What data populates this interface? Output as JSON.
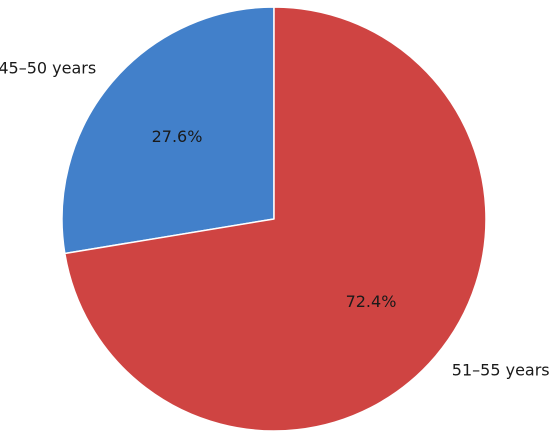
{
  "chart_data": {
    "type": "pie",
    "title": "",
    "slices": [
      {
        "label": "45–50 years",
        "value": 27.6,
        "display": "27.6%",
        "color": "#4280ca"
      },
      {
        "label": "51–55 years",
        "value": 72.4,
        "display": "72.4%",
        "color": "#cf4442"
      }
    ],
    "start_angle_deg": 90,
    "direction": "counterclockwise",
    "edge_color": "#ffffff"
  }
}
